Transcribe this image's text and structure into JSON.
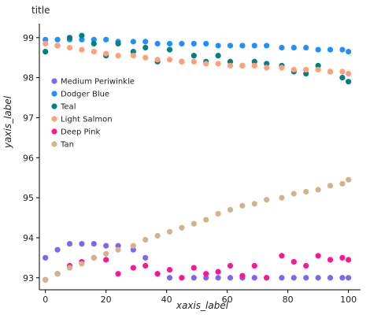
{
  "chart_data": {
    "type": "scatter",
    "title": "title",
    "xlabel": "xaxis_label",
    "ylabel": "yaxis_label",
    "xlim": [
      -2,
      104
    ],
    "ylim": [
      92.7,
      99.35
    ],
    "xticks": [
      0,
      20,
      40,
      60,
      80,
      100
    ],
    "yticks": [
      93,
      94,
      95,
      96,
      97,
      98,
      99
    ],
    "grid": false,
    "legend_position": "left",
    "x": [
      0,
      4,
      8,
      12,
      16,
      20,
      24,
      29,
      33,
      37,
      41,
      45,
      49,
      53,
      57,
      61,
      65,
      69,
      73,
      78,
      82,
      86,
      90,
      94,
      98,
      100
    ],
    "series": [
      {
        "name": "Medium Periwinkle",
        "color": "#7b68ee",
        "values": [
          93.5,
          93.7,
          93.85,
          93.85,
          93.85,
          93.8,
          93.8,
          93.7,
          93.5,
          93.1,
          93.0,
          93.0,
          93.0,
          93.0,
          93.0,
          93.0,
          93.0,
          93.0,
          93.0,
          93.0,
          93.0,
          93.0,
          93.0,
          93.0,
          93.0,
          93.0
        ]
      },
      {
        "name": "Dodger Blue",
        "color": "#1e90ff",
        "values": [
          98.95,
          98.95,
          98.95,
          98.95,
          98.95,
          98.95,
          98.9,
          98.9,
          98.9,
          98.85,
          98.85,
          98.85,
          98.85,
          98.85,
          98.8,
          98.8,
          98.8,
          98.8,
          98.8,
          98.75,
          98.75,
          98.75,
          98.7,
          98.7,
          98.7,
          98.65
        ]
      },
      {
        "name": "Teal",
        "color": "#008080",
        "values": [
          98.65,
          98.8,
          99.0,
          99.05,
          98.85,
          98.55,
          98.85,
          98.65,
          98.75,
          98.4,
          98.7,
          98.4,
          98.55,
          98.4,
          98.55,
          98.4,
          98.3,
          98.4,
          98.35,
          98.3,
          98.15,
          98.1,
          98.3,
          98.15,
          98.0,
          97.9
        ]
      },
      {
        "name": "Light Salmon",
        "color": "#ffa07a",
        "values": [
          98.85,
          98.8,
          98.75,
          98.7,
          98.65,
          98.6,
          98.55,
          98.55,
          98.5,
          98.45,
          98.45,
          98.4,
          98.4,
          98.35,
          98.35,
          98.3,
          98.3,
          98.3,
          98.25,
          98.25,
          98.2,
          98.2,
          98.2,
          98.15,
          98.15,
          98.1
        ]
      },
      {
        "name": "Deep Pink",
        "color": "#ff1493",
        "values": [
          92.95,
          93.1,
          93.3,
          93.4,
          93.5,
          93.45,
          93.1,
          93.25,
          93.3,
          93.1,
          93.2,
          93.0,
          93.25,
          93.1,
          93.15,
          93.3,
          93.05,
          93.3,
          93.0,
          93.55,
          93.4,
          93.3,
          93.55,
          93.45,
          93.5,
          93.45
        ]
      },
      {
        "name": "Tan",
        "color": "#d2b48c",
        "values": [
          92.95,
          93.1,
          93.25,
          93.35,
          93.5,
          93.6,
          93.7,
          93.8,
          93.95,
          94.05,
          94.15,
          94.25,
          94.35,
          94.45,
          94.6,
          94.7,
          94.8,
          94.85,
          94.95,
          95.0,
          95.1,
          95.15,
          95.2,
          95.3,
          95.35,
          95.45
        ]
      }
    ]
  }
}
